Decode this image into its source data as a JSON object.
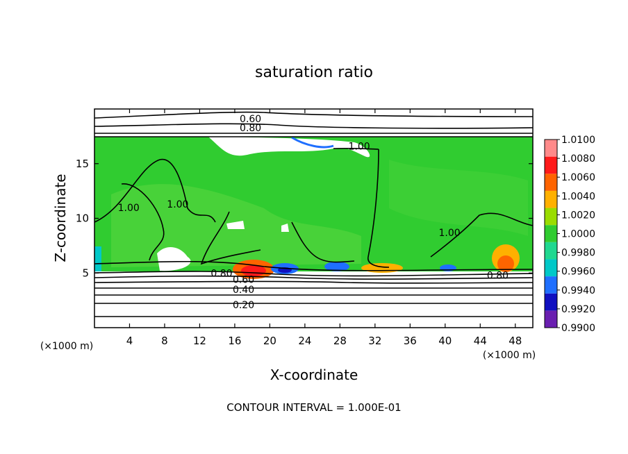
{
  "chart_data": {
    "type": "heatmap",
    "title": "saturation ratio",
    "xlabel": "X-coordinate",
    "ylabel": "Z-coordinate",
    "x_unit": "(×1000 m)",
    "xlim": [
      0,
      50
    ],
    "ylim": [
      0,
      20
    ],
    "x_ticks": [
      4,
      8,
      12,
      16,
      20,
      24,
      28,
      32,
      36,
      40,
      44,
      48
    ],
    "y_ticks": [
      5,
      10,
      15
    ],
    "colorbar": {
      "levels": [
        "0.9900",
        "0.9920",
        "0.9940",
        "0.9960",
        "0.9980",
        "1.0000",
        "1.0020",
        "1.0040",
        "1.0060",
        "1.0080",
        "1.0100"
      ],
      "colors": [
        "#6a1fb0",
        "#1010c0",
        "#1f6fff",
        "#00c8c8",
        "#20d890",
        "#30cc30",
        "#9adc00",
        "#ffb000",
        "#ff6400",
        "#ff1a1a",
        "#ff8a8a"
      ]
    },
    "contour_labels": [
      {
        "text": "0.60",
        "x": 17.8,
        "z": 19.1
      },
      {
        "text": "0.80",
        "x": 17.8,
        "z": 18.3
      },
      {
        "text": "1.00",
        "x": 30.2,
        "z": 16.6
      },
      {
        "text": "1.00",
        "x": 9.5,
        "z": 11.3
      },
      {
        "text": "1.00",
        "x": 3.9,
        "z": 11.0
      },
      {
        "text": "1.00",
        "x": 40.5,
        "z": 8.7
      },
      {
        "text": "0.80",
        "x": 14.5,
        "z": 5.0
      },
      {
        "text": "0.80",
        "x": 46.0,
        "z": 4.8
      },
      {
        "text": "0.60",
        "x": 17.0,
        "z": 4.4
      },
      {
        "text": "0.40",
        "x": 17.0,
        "z": 3.5
      },
      {
        "text": "0.20",
        "x": 17.0,
        "z": 2.1
      }
    ],
    "footer": "CONTOUR INTERVAL = 1.000E-01"
  }
}
